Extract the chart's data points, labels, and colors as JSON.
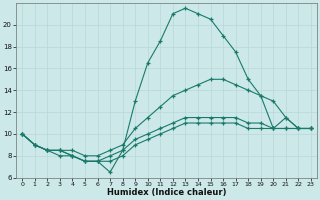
{
  "xlabel": "Humidex (Indice chaleur)",
  "x": [
    0,
    1,
    2,
    3,
    4,
    5,
    6,
    7,
    8,
    9,
    10,
    11,
    12,
    13,
    14,
    15,
    16,
    17,
    18,
    19,
    20,
    21,
    22,
    23
  ],
  "line_top": [
    10,
    9,
    8.5,
    8,
    8,
    7.5,
    7.5,
    6.5,
    8.5,
    13.0,
    16.5,
    18.5,
    21.0,
    21.5,
    21.0,
    20.5,
    19.0,
    17.5,
    15.0,
    13.5,
    10.5,
    11.5,
    10.5,
    10.5
  ],
  "line_upper": [
    10,
    9,
    8.5,
    8.5,
    8.5,
    8.0,
    8.0,
    8.5,
    9.0,
    10.5,
    11.5,
    12.5,
    13.5,
    14.0,
    14.5,
    15.0,
    15.0,
    14.5,
    14.0,
    13.5,
    13.0,
    11.5,
    10.5,
    10.5
  ],
  "line_lower": [
    10,
    9,
    8.5,
    8.5,
    8.0,
    7.5,
    7.5,
    8.0,
    8.5,
    9.5,
    10.0,
    10.5,
    11.0,
    11.5,
    11.5,
    11.5,
    11.5,
    11.5,
    11.0,
    11.0,
    10.5,
    10.5,
    10.5,
    10.5
  ],
  "line_bot": [
    10,
    9,
    8.5,
    8.5,
    8.0,
    7.5,
    7.5,
    7.5,
    8.0,
    9.0,
    9.5,
    10.0,
    10.5,
    11.0,
    11.0,
    11.0,
    11.0,
    11.0,
    10.5,
    10.5,
    10.5,
    10.5,
    10.5,
    10.5
  ],
  "bg_color": "#cce8e8",
  "grid_color": "#b8d8d8",
  "line_color": "#1a7a6a",
  "ylim": [
    6,
    22
  ],
  "yticks": [
    6,
    8,
    10,
    12,
    14,
    16,
    18,
    20
  ],
  "xticks": [
    0,
    1,
    2,
    3,
    4,
    5,
    6,
    7,
    8,
    9,
    10,
    11,
    12,
    13,
    14,
    15,
    16,
    17,
    18,
    19,
    20,
    21,
    22,
    23
  ]
}
